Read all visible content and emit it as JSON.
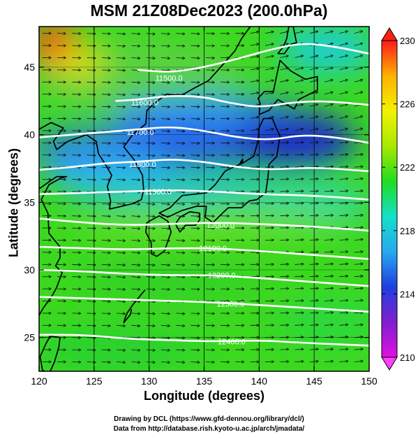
{
  "title": "MSM 21Z08Dec2023 (200.0hPa)",
  "xlabel": "Longitude (degrees)",
  "ylabel": "Latitude  (degrees)",
  "credits": [
    "Drawing by DCL (https://www.gfd-dennou.org/library/dcl/)",
    "Data from http://database.rish.kyoto-u.ac.jp/arch/jmadata/"
  ],
  "chart_data": {
    "type": "heatmap",
    "x_ticks": [
      "120",
      "125",
      "130",
      "135",
      "140",
      "145",
      "150"
    ],
    "y_ticks": [
      "25",
      "30",
      "35",
      "40",
      "45"
    ],
    "xlim": [
      120,
      150
    ],
    "ylim": [
      22.5,
      48
    ],
    "colorbar": {
      "ticks": [
        "230",
        "226",
        "222",
        "218",
        "214",
        "210"
      ],
      "range": [
        210,
        230
      ],
      "colors": [
        "#ff1a1a",
        "#ffb000",
        "#f2f200",
        "#a8e800",
        "#20dd20",
        "#14e0c8",
        "#28a8f0",
        "#1e40e0",
        "#8020d0",
        "#e010e0"
      ]
    },
    "contour_labels": [
      {
        "text": "11500.0",
        "lon": 131.8,
        "lat": 44.2
      },
      {
        "text": "11600.0",
        "lon": 129.6,
        "lat": 42.4
      },
      {
        "text": "11700.0",
        "lon": 129.2,
        "lat": 40.2
      },
      {
        "text": "11800.0",
        "lon": 129.4,
        "lat": 37.8
      },
      {
        "text": "11900.0",
        "lon": 130.8,
        "lat": 35.8
      },
      {
        "text": "12000.0",
        "lon": 136.5,
        "lat": 33.3
      },
      {
        "text": "12100.0",
        "lon": 135.8,
        "lat": 31.6
      },
      {
        "text": "12200.0",
        "lon": 136.6,
        "lat": 29.6
      },
      {
        "text": "12300.0",
        "lon": 137.4,
        "lat": 27.5
      },
      {
        "text": "12400.0",
        "lon": 137.5,
        "lat": 24.7
      }
    ],
    "height_contours": [
      {
        "value": 11500,
        "points": [
          [
            129,
            44.8
          ],
          [
            132,
            44.6
          ],
          [
            135,
            45.0
          ],
          [
            138,
            45.6
          ],
          [
            141,
            46.3
          ],
          [
            144,
            46.8
          ],
          [
            147,
            46.5
          ],
          [
            150,
            46.0
          ]
        ]
      },
      {
        "value": 11600,
        "points": [
          [
            127,
            42.5
          ],
          [
            129,
            42.6
          ],
          [
            132,
            42.9
          ],
          [
            135,
            42.8
          ],
          [
            137,
            42.4
          ],
          [
            140,
            42.0
          ],
          [
            143,
            42.4
          ],
          [
            146,
            42.5
          ],
          [
            150,
            42.2
          ]
        ]
      },
      {
        "value": 11700,
        "points": [
          [
            120,
            39.8
          ],
          [
            123,
            40.0
          ],
          [
            126,
            40.2
          ],
          [
            129,
            40.4
          ],
          [
            132,
            40.6
          ],
          [
            135,
            40.3
          ],
          [
            138,
            39.8
          ],
          [
            141,
            39.6
          ],
          [
            144,
            40.0
          ],
          [
            147,
            39.8
          ],
          [
            150,
            39.4
          ]
        ]
      },
      {
        "value": 11800,
        "points": [
          [
            120,
            37.4
          ],
          [
            123,
            37.6
          ],
          [
            126,
            37.9
          ],
          [
            129,
            38.0
          ],
          [
            132,
            38.2
          ],
          [
            135,
            38.0
          ],
          [
            138,
            37.6
          ],
          [
            141,
            37.4
          ],
          [
            145,
            37.6
          ],
          [
            150,
            37.3
          ]
        ]
      },
      {
        "value": 11900,
        "points": [
          [
            120,
            35.6
          ],
          [
            124,
            35.7
          ],
          [
            128,
            35.8
          ],
          [
            132,
            35.9
          ],
          [
            136,
            35.8
          ],
          [
            140,
            35.6
          ],
          [
            145,
            35.5
          ],
          [
            150,
            35.2
          ]
        ]
      },
      {
        "value": 12000,
        "points": [
          [
            120,
            33.8
          ],
          [
            124,
            33.5
          ],
          [
            128,
            33.3
          ],
          [
            132,
            33.4
          ],
          [
            136,
            33.5
          ],
          [
            140,
            33.4
          ],
          [
            145,
            33.2
          ],
          [
            150,
            32.9
          ]
        ]
      },
      {
        "value": 12100,
        "points": [
          [
            120,
            31.7
          ],
          [
            124,
            31.6
          ],
          [
            128,
            31.5
          ],
          [
            132,
            31.6
          ],
          [
            136,
            31.6
          ],
          [
            140,
            31.4
          ],
          [
            145,
            31.1
          ],
          [
            150,
            30.8
          ]
        ]
      },
      {
        "value": 12200,
        "points": [
          [
            120,
            30.0
          ],
          [
            124,
            29.9
          ],
          [
            128,
            29.7
          ],
          [
            132,
            29.6
          ],
          [
            136,
            29.6
          ],
          [
            140,
            29.4
          ],
          [
            145,
            29.1
          ],
          [
            150,
            28.8
          ]
        ]
      },
      {
        "value": 12300,
        "points": [
          [
            120,
            28.0
          ],
          [
            124,
            27.9
          ],
          [
            128,
            27.8
          ],
          [
            132,
            27.7
          ],
          [
            136,
            27.6
          ],
          [
            140,
            27.4
          ],
          [
            144,
            27.2
          ],
          [
            150,
            26.9
          ]
        ]
      },
      {
        "value": 12400,
        "points": [
          [
            120,
            25.2
          ],
          [
            124,
            25.2
          ],
          [
            128,
            24.9
          ],
          [
            132,
            24.8
          ],
          [
            136,
            24.7
          ],
          [
            140,
            24.8
          ],
          [
            144,
            24.6
          ],
          [
            150,
            24.4
          ]
        ]
      }
    ]
  }
}
